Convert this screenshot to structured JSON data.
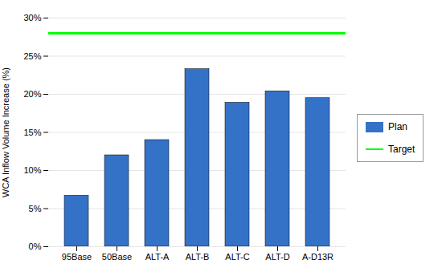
{
  "chart_data": {
    "type": "bar",
    "categories": [
      "95Base",
      "50Base",
      "ALT-A",
      "ALT-B",
      "ALT-C",
      "ALT-D",
      "A-D13R"
    ],
    "series": [
      {
        "name": "Plan",
        "type": "bar",
        "color": "#3472C8",
        "values": [
          6.7,
          12.0,
          14.0,
          23.3,
          18.9,
          20.4,
          19.5
        ]
      },
      {
        "name": "Target",
        "type": "line",
        "color": "#00FF00",
        "values": [
          28.0,
          28.0,
          28.0,
          28.0,
          28.0,
          28.0,
          28.0
        ]
      }
    ],
    "ylabel": "WCA Inflow Volume Increase (%)",
    "ylim": [
      0,
      30
    ],
    "yticks": [
      {
        "value": 0,
        "label": "0%"
      },
      {
        "value": 5,
        "label": "5%"
      },
      {
        "value": 10,
        "label": "10%"
      },
      {
        "value": 15,
        "label": "15%"
      },
      {
        "value": 20,
        "label": "20%"
      },
      {
        "value": 25,
        "label": "25%"
      },
      {
        "value": 30,
        "label": "30%"
      }
    ],
    "grid": true,
    "legend": "right"
  }
}
